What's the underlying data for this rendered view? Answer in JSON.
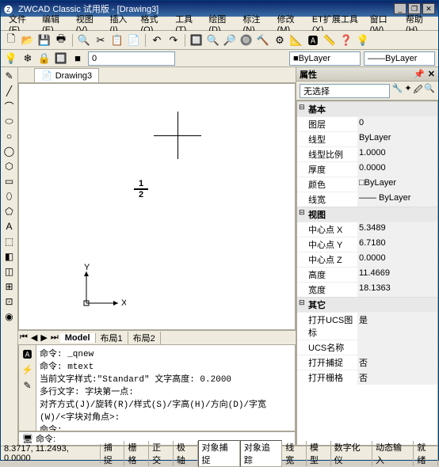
{
  "title": "ZWCAD Classic 试用版 - [Drawing3]",
  "menus": [
    "文件(F)",
    "编辑(E)",
    "视图(V)",
    "插入(I)",
    "格式(O)",
    "工具(T)",
    "绘图(D)",
    "标注(N)",
    "修改(M)",
    "ET扩展工具(X)",
    "窗口(W)",
    "帮助(H)"
  ],
  "toolbar1_icons": [
    "🗋",
    "📂",
    "💾",
    "🖶",
    "🔍",
    "✂",
    "📋",
    "📄",
    "↶",
    "↷",
    "🔲",
    "🔍",
    "🔎",
    "🔘",
    "🔨",
    "⚙",
    "📐",
    "🅰",
    "📏",
    "❓",
    "💡"
  ],
  "toolbar2_icons": [
    "💡",
    "❄",
    "🔒",
    "🔲",
    "■"
  ],
  "layer_label": "0",
  "bylayer1": "ByLayer",
  "bylayer2": "ByLayer",
  "doc_tab": "Drawing3",
  "left_icons": [
    "✎",
    "╱",
    "⌒",
    "⬭",
    "○",
    "◯",
    "⬡",
    "▭",
    "⬯",
    "⬠",
    "A",
    "⬚",
    "◧",
    "◫",
    "⊞",
    "⊡",
    "◉"
  ],
  "fraction_num": "1",
  "fraction_den": "2",
  "ucs_x": "X",
  "ucs_y": "Y",
  "model_tabs": [
    "Model",
    "布局1",
    "布局2"
  ],
  "cmd_icons": [
    "🅰",
    "⚡",
    "✎"
  ],
  "cmd_text": "命令: _qnew\n命令: mtext\n当前文字样式:\"Standard\" 文字高度: 0.2000\n多行文字: 字块第一点:\n对齐方式(J)/旋转(R)/样式(S)/字高(H)/方向(D)/字宽(W)/<字块对角点>:\n命令:\n另一角点:",
  "cmdline_prompt": "命令:",
  "props_title": "属性",
  "props_select": "无选择",
  "props_tool_icons": [
    "🔧",
    "✦",
    "🖉",
    "🔍"
  ],
  "cats": {
    "basic": "基本",
    "view": "视图",
    "misc": "其它"
  },
  "props": {
    "basic": [
      {
        "k": "图层",
        "v": "0"
      },
      {
        "k": "线型",
        "v": "ByLayer"
      },
      {
        "k": "线型比例",
        "v": "1.0000"
      },
      {
        "k": "厚度",
        "v": "0.0000"
      },
      {
        "k": "颜色",
        "v": "□ByLayer"
      },
      {
        "k": "线宽",
        "v": "—— ByLayer"
      }
    ],
    "view": [
      {
        "k": "中心点 X",
        "v": "5.3489"
      },
      {
        "k": "中心点 Y",
        "v": "6.7180"
      },
      {
        "k": "中心点 Z",
        "v": "0.0000"
      },
      {
        "k": "高度",
        "v": "11.4669"
      },
      {
        "k": "宽度",
        "v": "18.1363"
      }
    ],
    "misc": [
      {
        "k": "打开UCS图标",
        "v": "是"
      },
      {
        "k": "UCS名称",
        "v": ""
      },
      {
        "k": "打开捕捉",
        "v": "否"
      },
      {
        "k": "打开栅格",
        "v": "否"
      }
    ]
  },
  "status_coords": "8.3717, 11.2493, 0.0000",
  "status_btns": [
    "捕捉",
    "栅格",
    "正交",
    "极轴",
    "对象捕捉",
    "对象追踪",
    "线宽",
    "模型",
    "数字化仪",
    "动态输入",
    "就绪"
  ]
}
